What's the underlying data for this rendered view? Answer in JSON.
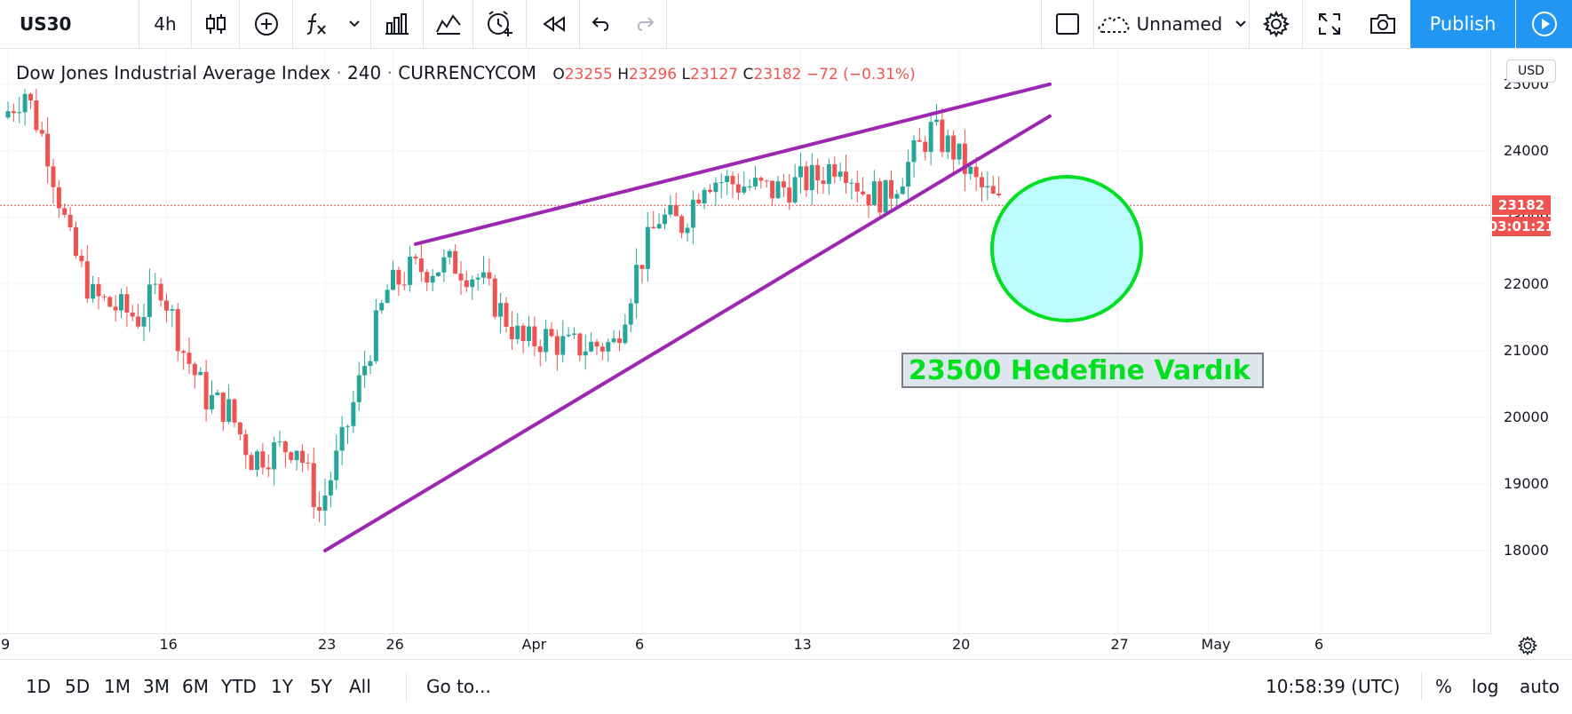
{
  "toolbar": {
    "symbol": "US30",
    "interval": "4h",
    "layout_name": "Unnamed",
    "publish_label": "Publish",
    "icons": [
      "candles-icon",
      "add-indicator-icon",
      "fx-icon",
      "chevron-down-icon",
      "bar-chart-icon",
      "compare-icon",
      "alert-clock-icon",
      "replay-icon",
      "undo-icon",
      "redo-icon",
      "rectangle-icon",
      "cloud-icon",
      "gear-icon",
      "fullscreen-icon",
      "camera-icon",
      "play-icon"
    ]
  },
  "legend": {
    "name": "Dow Jones Industrial Average Index",
    "interval": "240",
    "source": "CURRENCYCOM",
    "o_label": "O",
    "o": "23255",
    "h_label": "H",
    "h": "23296",
    "l_label": "L",
    "l": "23127",
    "c_label": "C",
    "c": "23182",
    "change": "−72 (−0.31%)"
  },
  "price_axis": {
    "currency": "USD",
    "ticks": [
      "25000",
      "24000",
      "23000",
      "22000",
      "21000",
      "20000",
      "19000",
      "18000"
    ],
    "current_price": "23182",
    "countdown": "03:01:21"
  },
  "time_axis": {
    "ticks": [
      "9",
      "16",
      "23",
      "26",
      "Apr",
      "6",
      "13",
      "20",
      "27",
      "May",
      "6"
    ]
  },
  "annotation": {
    "text": "23500 Hedefine Vardık"
  },
  "bottombar": {
    "ranges": [
      "1D",
      "5D",
      "1M",
      "3M",
      "6M",
      "YTD",
      "1Y",
      "5Y",
      "All"
    ],
    "goto": "Go to...",
    "clock": "10:58:39 (UTC)",
    "percent": "%",
    "log": "log",
    "auto": "auto"
  },
  "colors": {
    "up": "#26a69a",
    "down": "#ef5350",
    "trendline": "#9c27b0",
    "circle_fill": "#b2fbff",
    "circle_stroke": "#00e020",
    "accent": "#2196f3"
  },
  "chart_data": {
    "type": "candlestick",
    "title": "Dow Jones Industrial Average Index · 240 · CURRENCYCOM",
    "ylim": [
      17700,
      25400
    ],
    "xlim": [
      "2020-03-08",
      "2020-05-09"
    ],
    "approx_closes": [
      {
        "x": "2020-03-09",
        "close": 24500
      },
      {
        "x": "2020-03-10",
        "close": 24900
      },
      {
        "x": "2020-03-11",
        "close": 24000
      },
      {
        "x": "2020-03-12",
        "close": 22600
      },
      {
        "x": "2020-03-13",
        "close": 21800
      },
      {
        "x": "2020-03-15",
        "close": 21500
      },
      {
        "x": "2020-03-16",
        "close": 22000
      },
      {
        "x": "2020-03-17",
        "close": 21000
      },
      {
        "x": "2020-03-18",
        "close": 20300
      },
      {
        "x": "2020-03-19",
        "close": 20100
      },
      {
        "x": "2020-03-20",
        "close": 19400
      },
      {
        "x": "2020-03-22",
        "close": 19600
      },
      {
        "x": "2020-03-23",
        "close": 18600
      },
      {
        "x": "2020-03-24",
        "close": 19600
      },
      {
        "x": "2020-03-25",
        "close": 20800
      },
      {
        "x": "2020-03-26",
        "close": 21900
      },
      {
        "x": "2020-03-27",
        "close": 22200
      },
      {
        "x": "2020-03-29",
        "close": 22300
      },
      {
        "x": "2020-03-30",
        "close": 22100
      },
      {
        "x": "2020-03-31",
        "close": 21600
      },
      {
        "x": "2020-04-01",
        "close": 21100
      },
      {
        "x": "2020-04-02",
        "close": 21200
      },
      {
        "x": "2020-04-03",
        "close": 21050
      },
      {
        "x": "2020-04-05",
        "close": 21100
      },
      {
        "x": "2020-04-06",
        "close": 22200
      },
      {
        "x": "2020-04-07",
        "close": 23000
      },
      {
        "x": "2020-04-08",
        "close": 22900
      },
      {
        "x": "2020-04-09",
        "close": 23600
      },
      {
        "x": "2020-04-12",
        "close": 23400
      },
      {
        "x": "2020-04-13",
        "close": 23500
      },
      {
        "x": "2020-04-14",
        "close": 23600
      },
      {
        "x": "2020-04-15",
        "close": 23900
      },
      {
        "x": "2020-04-16",
        "close": 23400
      },
      {
        "x": "2020-04-17",
        "close": 23300
      },
      {
        "x": "2020-04-19",
        "close": 24300
      },
      {
        "x": "2020-04-20",
        "close": 24000
      },
      {
        "x": "2020-04-21",
        "close": 23500
      },
      {
        "x": "2020-04-22",
        "close": 23182
      }
    ],
    "trendlines": [
      {
        "from": {
          "x": "2020-03-27",
          "y": 22600
        },
        "to": {
          "x": "2020-04-24",
          "y": 25000
        }
      },
      {
        "from": {
          "x": "2020-03-23",
          "y": 18000
        },
        "to": {
          "x": "2020-04-24",
          "y": 24520
        }
      }
    ]
  }
}
